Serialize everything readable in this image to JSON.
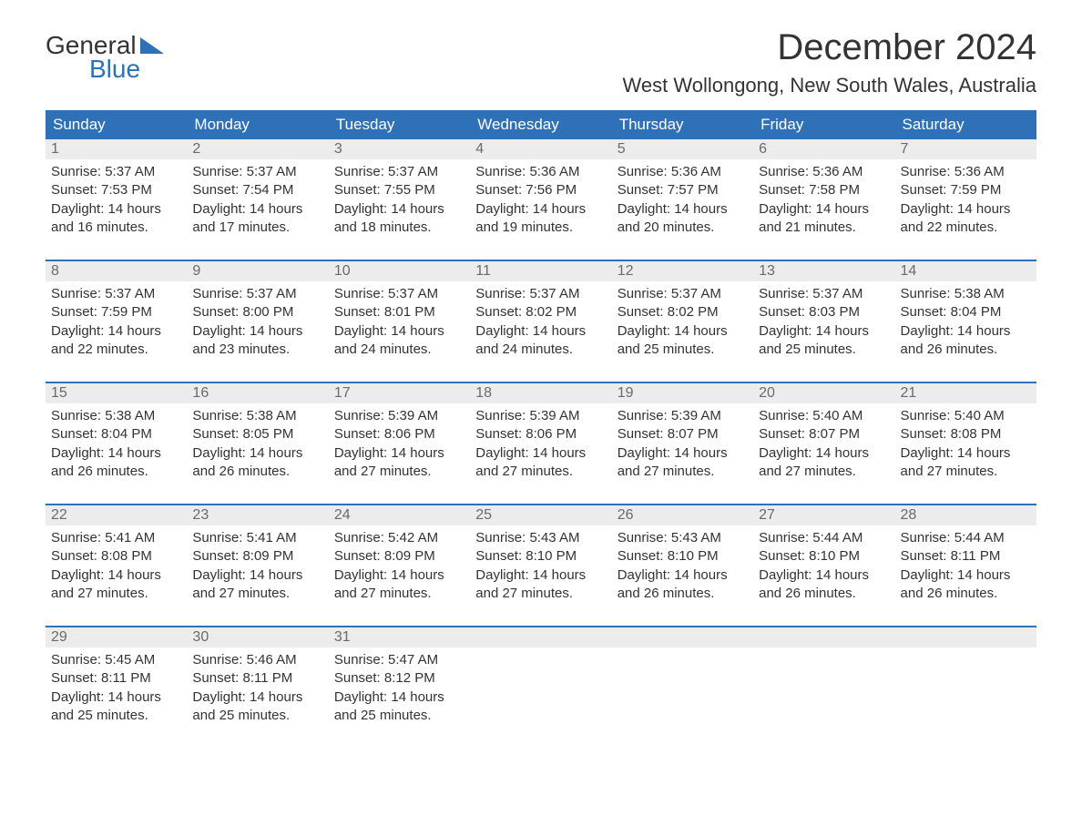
{
  "logo": {
    "word1": "General",
    "word2": "Blue",
    "accent_color": "#2f71b8"
  },
  "title": "December 2024",
  "location": "West Wollongong, New South Wales, Australia",
  "colors": {
    "header_bg": "#2f71b8",
    "header_text": "#ffffff",
    "daynum_bg": "#ececec",
    "daynum_text": "#6a6a6a",
    "body_text": "#333333",
    "row_divider": "#2f71b8",
    "page_bg": "#ffffff"
  },
  "table": {
    "type": "calendar-grid",
    "columns": [
      "Sunday",
      "Monday",
      "Tuesday",
      "Wednesday",
      "Thursday",
      "Friday",
      "Saturday"
    ],
    "header_fontsize": 17,
    "daynum_fontsize": 16,
    "body_fontsize": 15,
    "title_fontsize": 40,
    "location_fontsize": 22
  },
  "days": [
    {
      "n": "1",
      "sunrise": "Sunrise: 5:37 AM",
      "sunset": "Sunset: 7:53 PM",
      "d1": "Daylight: 14 hours",
      "d2": "and 16 minutes."
    },
    {
      "n": "2",
      "sunrise": "Sunrise: 5:37 AM",
      "sunset": "Sunset: 7:54 PM",
      "d1": "Daylight: 14 hours",
      "d2": "and 17 minutes."
    },
    {
      "n": "3",
      "sunrise": "Sunrise: 5:37 AM",
      "sunset": "Sunset: 7:55 PM",
      "d1": "Daylight: 14 hours",
      "d2": "and 18 minutes."
    },
    {
      "n": "4",
      "sunrise": "Sunrise: 5:36 AM",
      "sunset": "Sunset: 7:56 PM",
      "d1": "Daylight: 14 hours",
      "d2": "and 19 minutes."
    },
    {
      "n": "5",
      "sunrise": "Sunrise: 5:36 AM",
      "sunset": "Sunset: 7:57 PM",
      "d1": "Daylight: 14 hours",
      "d2": "and 20 minutes."
    },
    {
      "n": "6",
      "sunrise": "Sunrise: 5:36 AM",
      "sunset": "Sunset: 7:58 PM",
      "d1": "Daylight: 14 hours",
      "d2": "and 21 minutes."
    },
    {
      "n": "7",
      "sunrise": "Sunrise: 5:36 AM",
      "sunset": "Sunset: 7:59 PM",
      "d1": "Daylight: 14 hours",
      "d2": "and 22 minutes."
    },
    {
      "n": "8",
      "sunrise": "Sunrise: 5:37 AM",
      "sunset": "Sunset: 7:59 PM",
      "d1": "Daylight: 14 hours",
      "d2": "and 22 minutes."
    },
    {
      "n": "9",
      "sunrise": "Sunrise: 5:37 AM",
      "sunset": "Sunset: 8:00 PM",
      "d1": "Daylight: 14 hours",
      "d2": "and 23 minutes."
    },
    {
      "n": "10",
      "sunrise": "Sunrise: 5:37 AM",
      "sunset": "Sunset: 8:01 PM",
      "d1": "Daylight: 14 hours",
      "d2": "and 24 minutes."
    },
    {
      "n": "11",
      "sunrise": "Sunrise: 5:37 AM",
      "sunset": "Sunset: 8:02 PM",
      "d1": "Daylight: 14 hours",
      "d2": "and 24 minutes."
    },
    {
      "n": "12",
      "sunrise": "Sunrise: 5:37 AM",
      "sunset": "Sunset: 8:02 PM",
      "d1": "Daylight: 14 hours",
      "d2": "and 25 minutes."
    },
    {
      "n": "13",
      "sunrise": "Sunrise: 5:37 AM",
      "sunset": "Sunset: 8:03 PM",
      "d1": "Daylight: 14 hours",
      "d2": "and 25 minutes."
    },
    {
      "n": "14",
      "sunrise": "Sunrise: 5:38 AM",
      "sunset": "Sunset: 8:04 PM",
      "d1": "Daylight: 14 hours",
      "d2": "and 26 minutes."
    },
    {
      "n": "15",
      "sunrise": "Sunrise: 5:38 AM",
      "sunset": "Sunset: 8:04 PM",
      "d1": "Daylight: 14 hours",
      "d2": "and 26 minutes."
    },
    {
      "n": "16",
      "sunrise": "Sunrise: 5:38 AM",
      "sunset": "Sunset: 8:05 PM",
      "d1": "Daylight: 14 hours",
      "d2": "and 26 minutes."
    },
    {
      "n": "17",
      "sunrise": "Sunrise: 5:39 AM",
      "sunset": "Sunset: 8:06 PM",
      "d1": "Daylight: 14 hours",
      "d2": "and 27 minutes."
    },
    {
      "n": "18",
      "sunrise": "Sunrise: 5:39 AM",
      "sunset": "Sunset: 8:06 PM",
      "d1": "Daylight: 14 hours",
      "d2": "and 27 minutes."
    },
    {
      "n": "19",
      "sunrise": "Sunrise: 5:39 AM",
      "sunset": "Sunset: 8:07 PM",
      "d1": "Daylight: 14 hours",
      "d2": "and 27 minutes."
    },
    {
      "n": "20",
      "sunrise": "Sunrise: 5:40 AM",
      "sunset": "Sunset: 8:07 PM",
      "d1": "Daylight: 14 hours",
      "d2": "and 27 minutes."
    },
    {
      "n": "21",
      "sunrise": "Sunrise: 5:40 AM",
      "sunset": "Sunset: 8:08 PM",
      "d1": "Daylight: 14 hours",
      "d2": "and 27 minutes."
    },
    {
      "n": "22",
      "sunrise": "Sunrise: 5:41 AM",
      "sunset": "Sunset: 8:08 PM",
      "d1": "Daylight: 14 hours",
      "d2": "and 27 minutes."
    },
    {
      "n": "23",
      "sunrise": "Sunrise: 5:41 AM",
      "sunset": "Sunset: 8:09 PM",
      "d1": "Daylight: 14 hours",
      "d2": "and 27 minutes."
    },
    {
      "n": "24",
      "sunrise": "Sunrise: 5:42 AM",
      "sunset": "Sunset: 8:09 PM",
      "d1": "Daylight: 14 hours",
      "d2": "and 27 minutes."
    },
    {
      "n": "25",
      "sunrise": "Sunrise: 5:43 AM",
      "sunset": "Sunset: 8:10 PM",
      "d1": "Daylight: 14 hours",
      "d2": "and 27 minutes."
    },
    {
      "n": "26",
      "sunrise": "Sunrise: 5:43 AM",
      "sunset": "Sunset: 8:10 PM",
      "d1": "Daylight: 14 hours",
      "d2": "and 26 minutes."
    },
    {
      "n": "27",
      "sunrise": "Sunrise: 5:44 AM",
      "sunset": "Sunset: 8:10 PM",
      "d1": "Daylight: 14 hours",
      "d2": "and 26 minutes."
    },
    {
      "n": "28",
      "sunrise": "Sunrise: 5:44 AM",
      "sunset": "Sunset: 8:11 PM",
      "d1": "Daylight: 14 hours",
      "d2": "and 26 minutes."
    },
    {
      "n": "29",
      "sunrise": "Sunrise: 5:45 AM",
      "sunset": "Sunset: 8:11 PM",
      "d1": "Daylight: 14 hours",
      "d2": "and 25 minutes."
    },
    {
      "n": "30",
      "sunrise": "Sunrise: 5:46 AM",
      "sunset": "Sunset: 8:11 PM",
      "d1": "Daylight: 14 hours",
      "d2": "and 25 minutes."
    },
    {
      "n": "31",
      "sunrise": "Sunrise: 5:47 AM",
      "sunset": "Sunset: 8:12 PM",
      "d1": "Daylight: 14 hours",
      "d2": "and 25 minutes."
    }
  ]
}
